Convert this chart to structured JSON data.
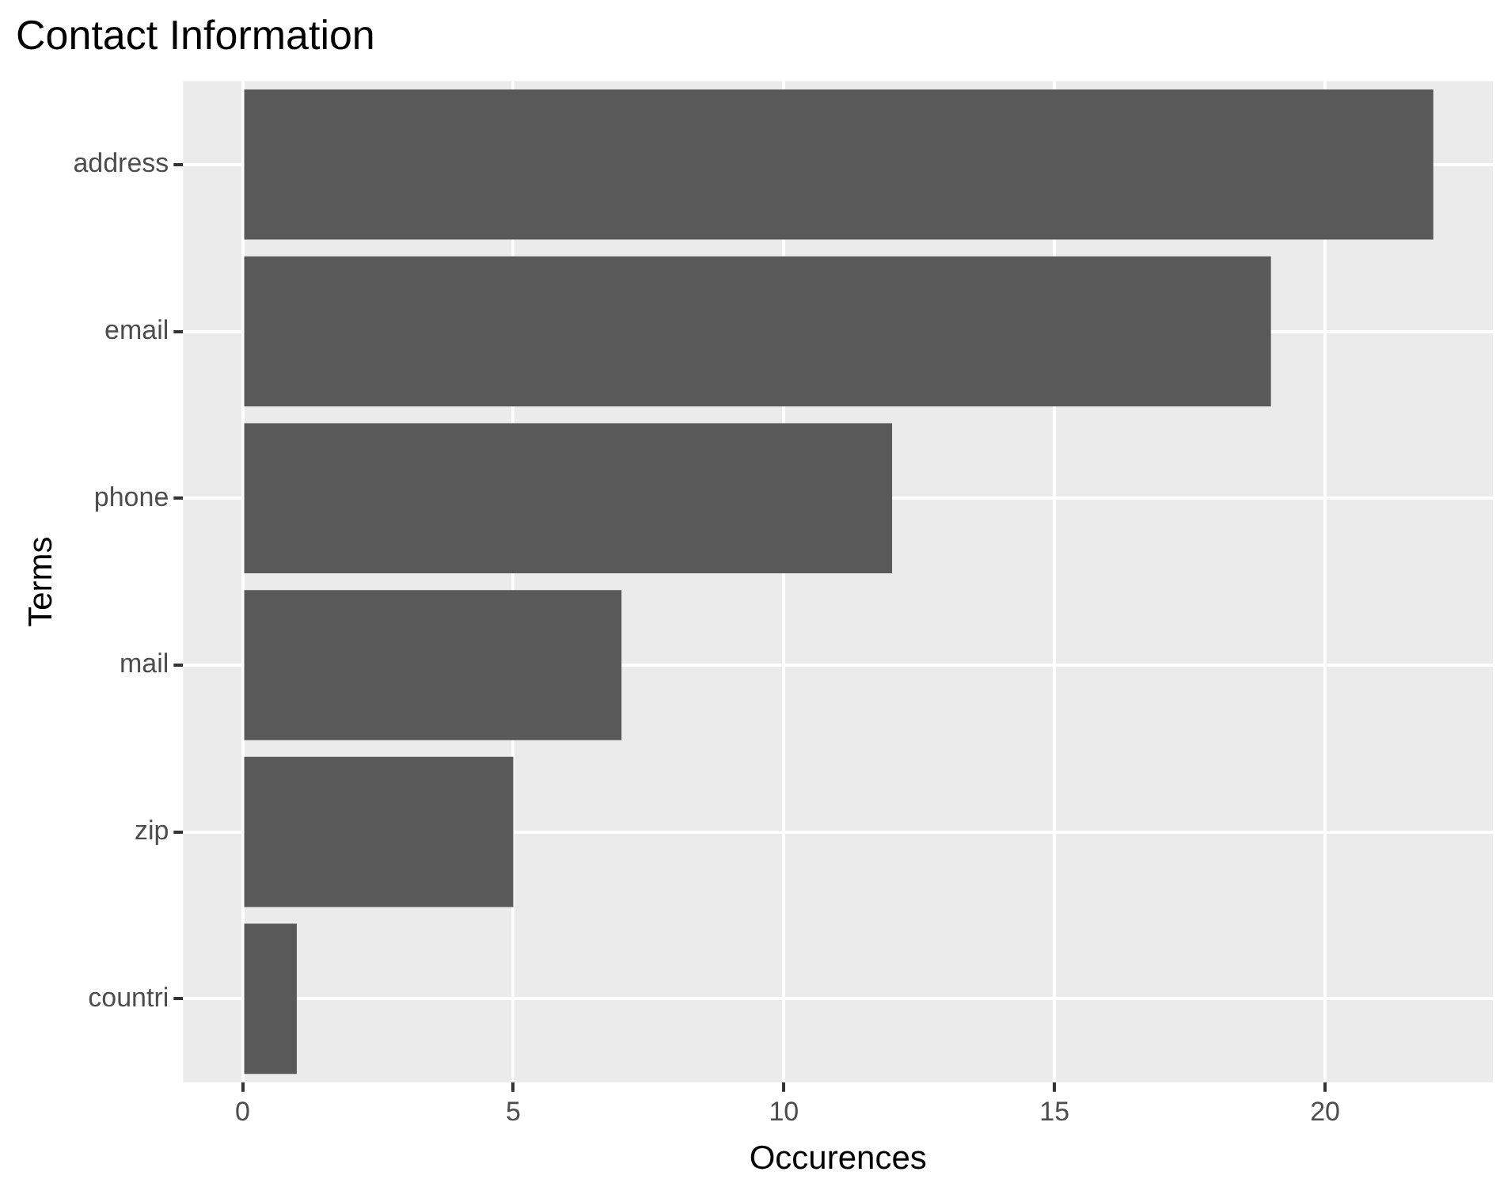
{
  "chart_data": {
    "type": "bar",
    "orientation": "horizontal",
    "title": "Contact Information",
    "xlabel": "Occurences",
    "ylabel": "Terms",
    "categories": [
      "address",
      "email",
      "phone",
      "mail",
      "zip",
      "countri"
    ],
    "values": [
      22,
      19,
      12,
      7,
      5,
      1
    ],
    "color": "#595959",
    "xlim": [
      -1.1,
      23.1
    ],
    "xticks": [
      0,
      5,
      10,
      15,
      20
    ],
    "grid": true,
    "legend": false
  }
}
